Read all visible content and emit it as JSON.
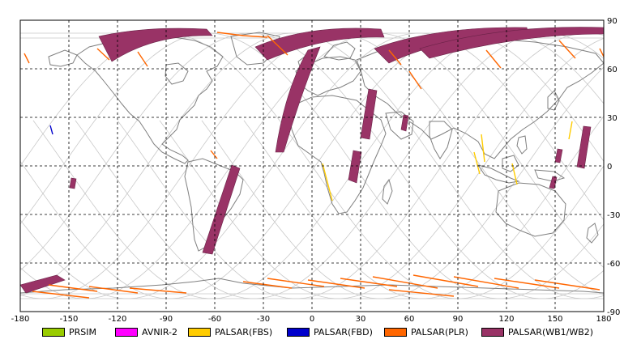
{
  "map": {
    "lon_range": [
      -180,
      180
    ],
    "lat_range": [
      -90,
      90
    ],
    "grid_lines": "dashed",
    "x_ticks": [
      "-180",
      "-150",
      "-120",
      "-90",
      "-60",
      "-30",
      "0",
      "30",
      "60",
      "90",
      "120",
      "150",
      "180"
    ],
    "y_ticks": [
      "90",
      "60",
      "30",
      "0",
      "-30",
      "-60",
      "-90"
    ],
    "colors": {
      "coastline": "#7f7f7f",
      "orbit_track": "#c8c8c8",
      "grid": "#000000"
    }
  },
  "legend": {
    "items": [
      {
        "label": "PRSIM",
        "color": "#99cc00"
      },
      {
        "label": "AVNIR-2",
        "color": "#ff00ff"
      },
      {
        "label": "PALSAR(FBS)",
        "color": "#ffcc00"
      },
      {
        "label": "PALSAR(FBD)",
        "color": "#0000cc"
      },
      {
        "label": "PALSAR(PLR)",
        "color": "#ff6600"
      },
      {
        "label": "PALSAR(WB1/WB2)",
        "color": "#993366"
      }
    ]
  }
}
